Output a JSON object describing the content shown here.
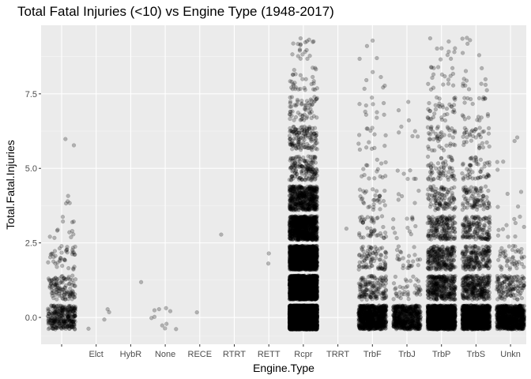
{
  "chart_data": {
    "type": "scatter",
    "title": "Total Fatal Injuries (<10) vs Engine Type (1948-2017)",
    "xlabel": "Engine.Type",
    "ylabel": "Total.Fatal.Injuries",
    "categories": [
      "",
      "Elct",
      "HybR",
      "None",
      "RECE",
      "RTRT",
      "RETT",
      "Rcpr",
      "TRRT",
      "TrbF",
      "TrbJ",
      "TrbP",
      "TrbS",
      "Unkn"
    ],
    "y_ticks": [
      0.0,
      2.5,
      5.0,
      7.5
    ],
    "y_tick_labels": [
      "0.0",
      "2.5",
      "5.0",
      "7.5"
    ],
    "ylim": [
      -0.9,
      9.8
    ],
    "grid": true,
    "jitter": 0.4,
    "point_alpha": 0.25,
    "point_color": "#000000",
    "panel_color": "#ebebeb",
    "counts": [
      [
        300,
        110,
        40,
        12,
        4,
        0,
        2,
        0,
        0,
        0
      ],
      [
        4,
        0,
        0,
        0,
        0,
        0,
        0,
        0,
        0,
        0
      ],
      [
        0,
        1,
        0,
        0,
        0,
        0,
        0,
        0,
        0,
        0
      ],
      [
        10,
        0,
        0,
        0,
        0,
        0,
        0,
        0,
        0,
        0
      ],
      [
        1,
        0,
        0,
        0,
        0,
        0,
        0,
        0,
        0,
        0
      ],
      [
        0,
        0,
        0,
        1,
        0,
        0,
        0,
        0,
        0,
        0
      ],
      [
        0,
        0,
        2,
        0,
        0,
        0,
        0,
        0,
        0,
        0
      ],
      [
        6000,
        2500,
        1500,
        900,
        500,
        150,
        130,
        60,
        30,
        20
      ],
      [
        0,
        0,
        0,
        1,
        0,
        0,
        0,
        0,
        0,
        0
      ],
      [
        900,
        140,
        85,
        45,
        30,
        15,
        14,
        10,
        6,
        4
      ],
      [
        600,
        40,
        25,
        12,
        5,
        6,
        5,
        3,
        0,
        0
      ],
      [
        1500,
        350,
        250,
        180,
        100,
        60,
        45,
        35,
        18,
        10
      ],
      [
        1200,
        300,
        200,
        150,
        90,
        50,
        35,
        20,
        12,
        6
      ],
      [
        900,
        130,
        45,
        10,
        4,
        3,
        2,
        0,
        0,
        0
      ]
    ]
  }
}
